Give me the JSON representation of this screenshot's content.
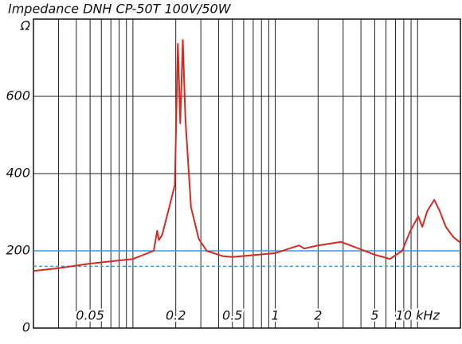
{
  "chart_data": {
    "type": "line",
    "title": "Impedance DNH CP-50T 100V/50W",
    "ylabel": "Ω",
    "xscale": "log",
    "xlim": [
      0.02,
      20
    ],
    "ylim": [
      0,
      800
    ],
    "xticks": [
      0.05,
      0.2,
      0.5,
      1,
      2,
      5,
      {
        "value": 10,
        "label": "10 kHz"
      }
    ],
    "xgrid": [
      0.03,
      0.04,
      0.06,
      0.07,
      0.08,
      0.09,
      0.1,
      0.3,
      0.4,
      0.6,
      0.7,
      0.8,
      0.9,
      3,
      4,
      6,
      7,
      8,
      9
    ],
    "yticks": [
      0,
      200,
      400,
      600
    ],
    "grid": true,
    "hlines": [
      {
        "value": 200,
        "style": "solid",
        "color": "#3a9ad9"
      },
      {
        "value": 160,
        "style": "dashed",
        "color": "#3a9ad9"
      }
    ],
    "series": [
      {
        "name": "Impedance",
        "color": "#d42a22",
        "x": [
          0.02,
          0.03,
          0.05,
          0.1,
          0.14,
          0.148,
          0.152,
          0.16,
          0.18,
          0.197,
          0.207,
          0.215,
          0.224,
          0.234,
          0.256,
          0.29,
          0.33,
          0.43,
          0.5,
          1,
          1.47,
          1.6,
          2,
          2.9,
          3.6,
          5,
          6.4,
          7.8,
          8.9,
          10.1,
          10.8,
          11.7,
          13.1,
          14.3,
          15.8,
          17.9,
          20
        ],
        "values": [
          148,
          155,
          167,
          179,
          200,
          252,
          228,
          240,
          313,
          371,
          736,
          530,
          746,
          540,
          313,
          231,
          200,
          186,
          184,
          194,
          214,
          206,
          214,
          223,
          210,
          190,
          179,
          200,
          252,
          289,
          262,
          303,
          332,
          303,
          262,
          235,
          221
        ]
      }
    ]
  }
}
